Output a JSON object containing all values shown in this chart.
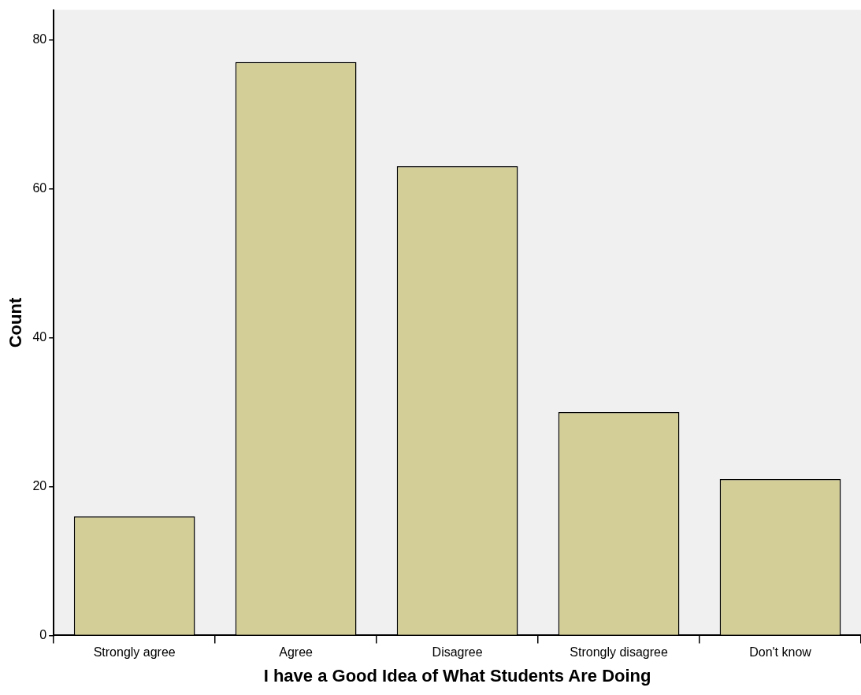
{
  "chart_data": {
    "type": "bar",
    "xlabel": "I have a Good Idea of What Students Are Doing",
    "ylabel": "Count",
    "categories": [
      "Strongly agree",
      "Agree",
      "Disagree",
      "Strongly disagree",
      "Don't know"
    ],
    "values": [
      16,
      77,
      63,
      30,
      21
    ],
    "color": "#d3ce97",
    "ylim": [
      0,
      84
    ],
    "yticks": [
      0,
      20,
      40,
      60,
      80
    ],
    "grid": false,
    "legend": false
  }
}
